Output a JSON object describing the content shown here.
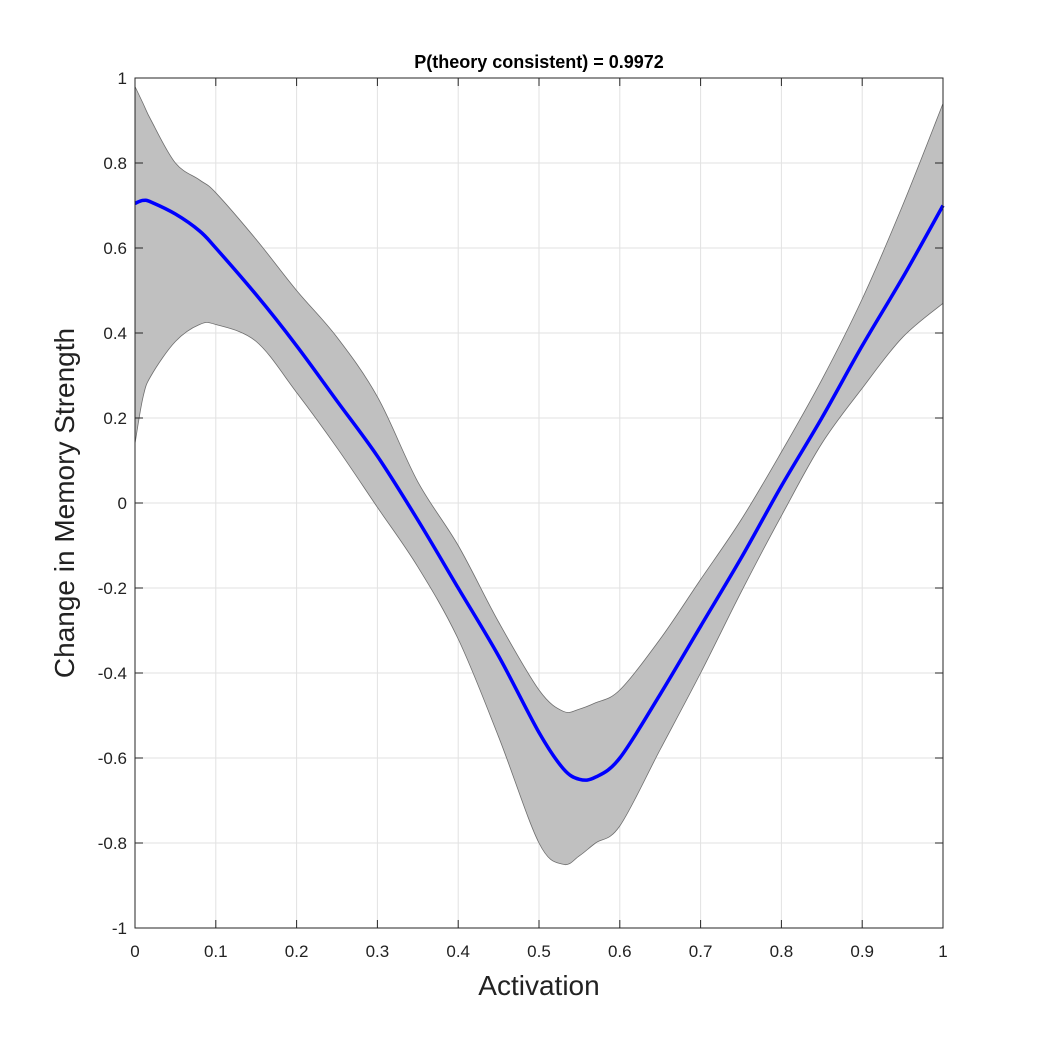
{
  "chart_data": {
    "type": "line",
    "title": "P(theory consistent) = 0.9972",
    "xlabel": "Activation",
    "ylabel": "Change in Memory Strength",
    "xlim": [
      0,
      1
    ],
    "ylim": [
      -1,
      1
    ],
    "x_ticks": [
      "0",
      "0.1",
      "0.2",
      "0.3",
      "0.4",
      "0.5",
      "0.6",
      "0.7",
      "0.8",
      "0.9",
      "1"
    ],
    "y_ticks": [
      "1",
      "0.8",
      "0.6",
      "0.4",
      "0.2",
      "0",
      "-0.2",
      "-0.4",
      "-0.6",
      "-0.8",
      "-1"
    ],
    "grid": true,
    "colors": {
      "line": "#0000ff",
      "band": "#c0c0c0",
      "band_edge": "#6e6e6e",
      "grid": "#e2e2e2"
    },
    "x": [
      0,
      0.01,
      0.02,
      0.05,
      0.08,
      0.1,
      0.15,
      0.2,
      0.25,
      0.3,
      0.35,
      0.4,
      0.45,
      0.5,
      0.53,
      0.55,
      0.57,
      0.6,
      0.65,
      0.7,
      0.75,
      0.8,
      0.85,
      0.9,
      0.95,
      1
    ],
    "series": [
      {
        "values": [
          0.705,
          0.712,
          0.708,
          0.68,
          0.64,
          0.6,
          0.49,
          0.37,
          0.24,
          0.11,
          -0.04,
          -0.2,
          -0.36,
          -0.54,
          -0.625,
          -0.65,
          -0.645,
          -0.6,
          -0.45,
          -0.29,
          -0.13,
          0.04,
          0.2,
          0.37,
          0.53,
          0.7
        ]
      },
      {
        "values": [
          0.98,
          0.94,
          0.9,
          0.8,
          0.76,
          0.73,
          0.62,
          0.5,
          0.39,
          0.25,
          0.05,
          -0.1,
          -0.28,
          -0.44,
          -0.49,
          -0.485,
          -0.47,
          -0.44,
          -0.32,
          -0.18,
          -0.04,
          0.12,
          0.29,
          0.48,
          0.7,
          0.94
        ]
      },
      {
        "values": [
          0.14,
          0.25,
          0.3,
          0.38,
          0.42,
          0.42,
          0.38,
          0.26,
          0.13,
          -0.01,
          -0.15,
          -0.32,
          -0.55,
          -0.8,
          -0.85,
          -0.83,
          -0.8,
          -0.76,
          -0.58,
          -0.4,
          -0.21,
          -0.03,
          0.14,
          0.27,
          0.39,
          0.47
        ]
      }
    ]
  }
}
